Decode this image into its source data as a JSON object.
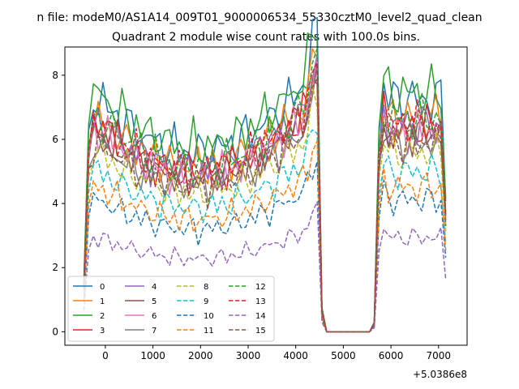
{
  "chart_data": {
    "type": "line",
    "suptitle": "n file: modeM0/AS1A14_009T01_9000006534_55330cztM0_level2_quad_clean",
    "title": "Quadrant 2 module wise count rates with 100.0s bins.",
    "xlabel": "",
    "ylabel": "",
    "offset_label": "+5.0386e8",
    "xlim": [
      -850,
      7600
    ],
    "ylim": [
      -0.42,
      8.88
    ],
    "xticks": [
      0,
      1000,
      2000,
      3000,
      4000,
      5000,
      6000,
      7000
    ],
    "xtick_labels": [
      "0",
      "1000",
      "2000",
      "3000",
      "4000",
      "5000",
      "6000",
      "7000"
    ],
    "yticks": [
      0,
      2,
      4,
      6,
      8
    ],
    "ytick_labels": [
      "0",
      "2",
      "4",
      "6",
      "8"
    ],
    "grid": false,
    "legend_position": "lower-left",
    "legend_columns": 4,
    "segments": {
      "on1": {
        "start": -450,
        "end": 4450,
        "step": 100
      },
      "drop": [
        4550,
        4650
      ],
      "off": [
        4650,
        5550
      ],
      "rise": [
        5650,
        5750
      ],
      "on2": {
        "start": 5750,
        "end": 7150,
        "step": 100
      }
    },
    "series": [
      {
        "name": "0",
        "color": "#1f77b4",
        "dash": "solid",
        "level": 7.4
      },
      {
        "name": "1",
        "color": "#ff7f0e",
        "dash": "solid",
        "level": 6.8
      },
      {
        "name": "2",
        "color": "#2ca02c",
        "dash": "solid",
        "level": 7.6
      },
      {
        "name": "3",
        "color": "#d62728",
        "dash": "solid",
        "level": 6.5
      },
      {
        "name": "4",
        "color": "#9467bd",
        "dash": "solid",
        "level": 6.6
      },
      {
        "name": "5",
        "color": "#8c564b",
        "dash": "solid",
        "level": 6.3
      },
      {
        "name": "6",
        "color": "#e377c2",
        "dash": "solid",
        "level": 6.4
      },
      {
        "name": "7",
        "color": "#7f7f7f",
        "dash": "solid",
        "level": 6.0
      },
      {
        "name": "8",
        "color": "#bcbd22",
        "dash": "dashed",
        "level": 5.7
      },
      {
        "name": "9",
        "color": "#17becf",
        "dash": "dashed",
        "level": 5.1
      },
      {
        "name": "10",
        "color": "#1f77b4",
        "dash": "dashed",
        "level": 4.2
      },
      {
        "name": "11",
        "color": "#ff7f0e",
        "dash": "dashed",
        "level": 4.6
      },
      {
        "name": "12",
        "color": "#2ca02c",
        "dash": "dashed",
        "level": 6.8
      },
      {
        "name": "13",
        "color": "#d62728",
        "dash": "dashed",
        "level": 6.6
      },
      {
        "name": "14",
        "color": "#9467bd",
        "dash": "dashed",
        "level": 3.0
      },
      {
        "name": "15",
        "color": "#8c564b",
        "dash": "dashed",
        "level": 6.0
      }
    ]
  }
}
